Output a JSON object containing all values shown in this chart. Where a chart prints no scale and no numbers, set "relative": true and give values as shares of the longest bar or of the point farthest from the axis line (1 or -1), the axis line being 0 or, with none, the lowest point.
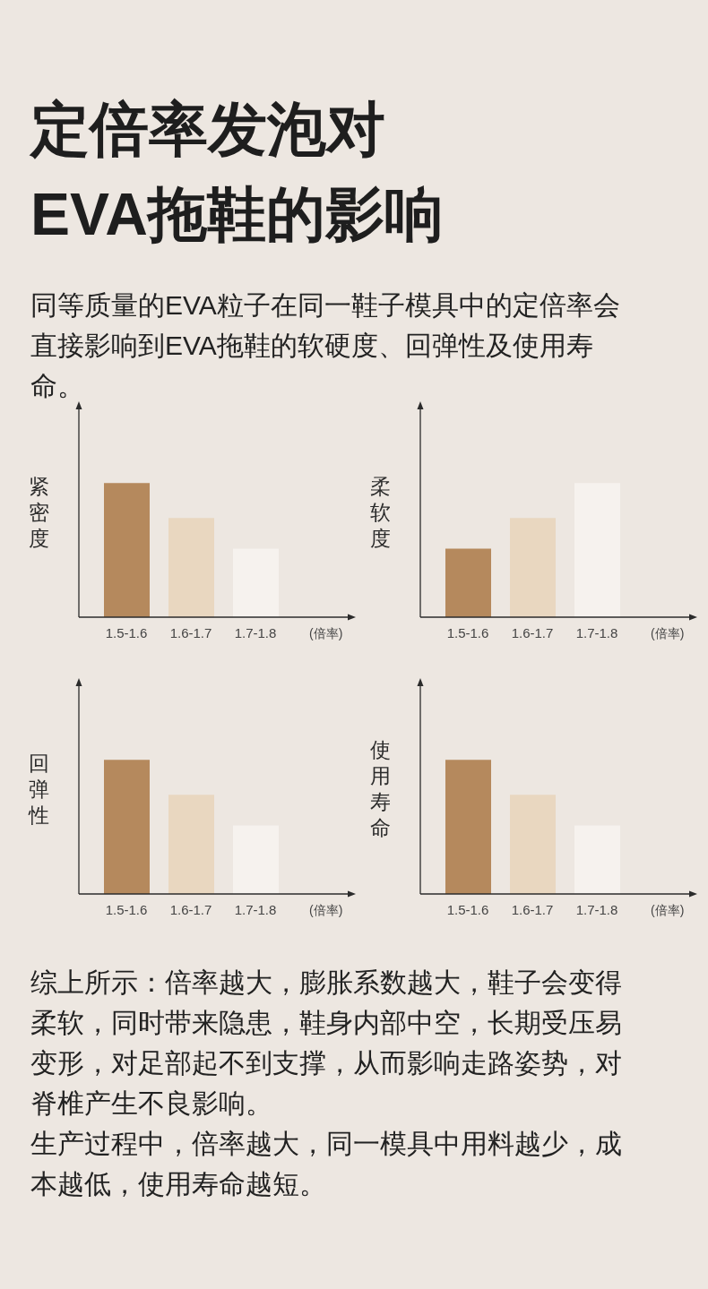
{
  "chart_data": [
    {
      "type": "bar",
      "title": "定倍率发泡对EVA拖鞋的影响",
      "subtitle": "同等质量的EVA粒子在同一鞋子模具中的定倍率会直接影响到EVA拖鞋的软硬度、回弹性及使用寿命。",
      "ylabel": "紧密度",
      "xlabel": "(倍率)",
      "relative": true,
      "categories": [
        "1.5-1.6",
        "1.6-1.7",
        "1.7-1.8"
      ],
      "values": [
        1,
        0.74,
        0.51
      ],
      "colors": [
        "#b5895d",
        "#e9d7c0",
        "#f6f2ee"
      ]
    },
    {
      "type": "bar",
      "ylabel": "柔软度",
      "xlabel": "(倍率)",
      "relative": true,
      "categories": [
        "1.5-1.6",
        "1.6-1.7",
        "1.7-1.8"
      ],
      "values": [
        0.51,
        0.74,
        1
      ],
      "colors": [
        "#b5895d",
        "#e9d7c0",
        "#f6f2ee"
      ]
    },
    {
      "type": "bar",
      "ylabel": "回弹性",
      "xlabel": "(倍率)",
      "relative": true,
      "categories": [
        "1.5-1.6",
        "1.6-1.7",
        "1.7-1.8"
      ],
      "values": [
        1,
        0.74,
        0.51
      ],
      "colors": [
        "#b5895d",
        "#e9d7c0",
        "#f6f2ee"
      ]
    },
    {
      "type": "bar",
      "ylabel": "使用寿命",
      "xlabel": "(倍率)",
      "relative": true,
      "categories": [
        "1.5-1.6",
        "1.6-1.7",
        "1.7-1.8"
      ],
      "values": [
        1,
        0.74,
        0.51
      ],
      "colors": [
        "#b5895d",
        "#e9d7c0",
        "#f6f2ee"
      ],
      "annotations": [
        "综上所示：倍率越大，膨胀系数越大，鞋子会变得柔软，同时带来隐患，鞋身内部中空，长期受压易变形，对足部起不到支撑，从而影响走路姿势，对脊椎产生不良影响。",
        "生产过程中，倍率越大，同一模具中用料越少，成本越低，使用寿命越短。"
      ]
    }
  ]
}
